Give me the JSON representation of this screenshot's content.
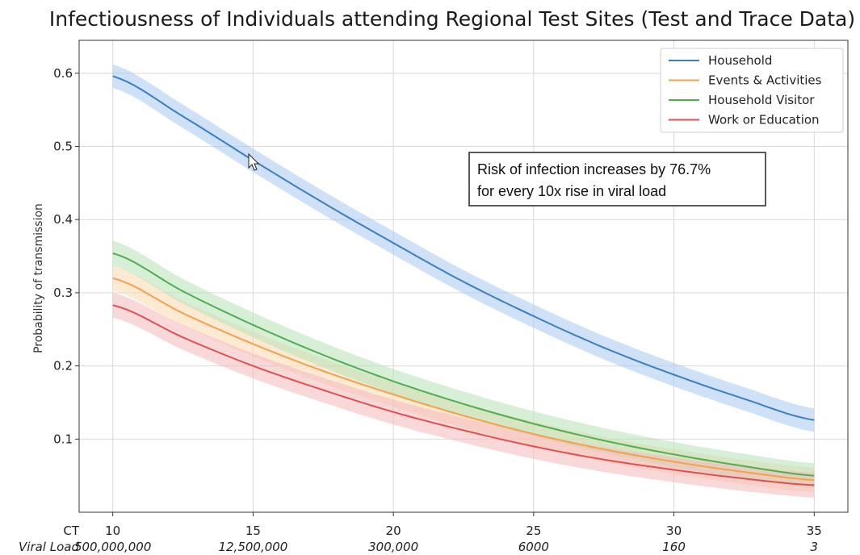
{
  "chart_data": {
    "type": "line",
    "title": "Infectiousness of Individuals attending Regional Test Sites (Test and Trace Data)",
    "ylabel": "Probability of transmission",
    "x_row_label": "CT",
    "viral_load_row_label": "Viral Load",
    "x_ticks": [
      10,
      15,
      20,
      25,
      30,
      35
    ],
    "viral_load_ticks": [
      "500,000,000",
      "12,500,000",
      "300,000",
      "6000",
      "160",
      "3"
    ],
    "y_ticks": [
      0.1,
      0.2,
      0.3,
      0.4,
      0.5,
      0.6
    ],
    "xlim": [
      8.8,
      36.2
    ],
    "ylim": [
      0.0,
      0.645
    ],
    "grid": true,
    "legend_position": "top-right",
    "x": [
      10,
      12.5,
      15,
      17.5,
      20,
      22.5,
      25,
      27.5,
      30,
      32.5,
      35
    ],
    "series": [
      {
        "name": "Household",
        "color": "#3a7fbf",
        "band_color": "#a8c8ee",
        "values": [
          0.596,
          0.541,
          0.481,
          0.423,
          0.368,
          0.315,
          0.268,
          0.225,
          0.188,
          0.155,
          0.126
        ],
        "band": 0.016
      },
      {
        "name": "Events & Activities",
        "color": "#f5a04a",
        "band_color": "#fcd9ae",
        "values": [
          0.32,
          0.272,
          0.23,
          0.193,
          0.161,
          0.132,
          0.107,
          0.086,
          0.069,
          0.055,
          0.044
        ],
        "band": 0.017
      },
      {
        "name": "Household Visitor",
        "color": "#4fae4f",
        "band_color": "#b7e2b5",
        "values": [
          0.354,
          0.302,
          0.256,
          0.215,
          0.179,
          0.148,
          0.121,
          0.098,
          0.079,
          0.063,
          0.05
        ],
        "band": 0.017
      },
      {
        "name": "Work or Education",
        "color": "#e05050",
        "band_color": "#f4b8bb",
        "values": [
          0.283,
          0.239,
          0.2,
          0.167,
          0.137,
          0.112,
          0.09,
          0.072,
          0.058,
          0.046,
          0.037
        ],
        "band": 0.017
      }
    ],
    "annotation": [
      "Risk of infection increases by 76.7%",
      "for every 10x rise in viral load"
    ]
  }
}
